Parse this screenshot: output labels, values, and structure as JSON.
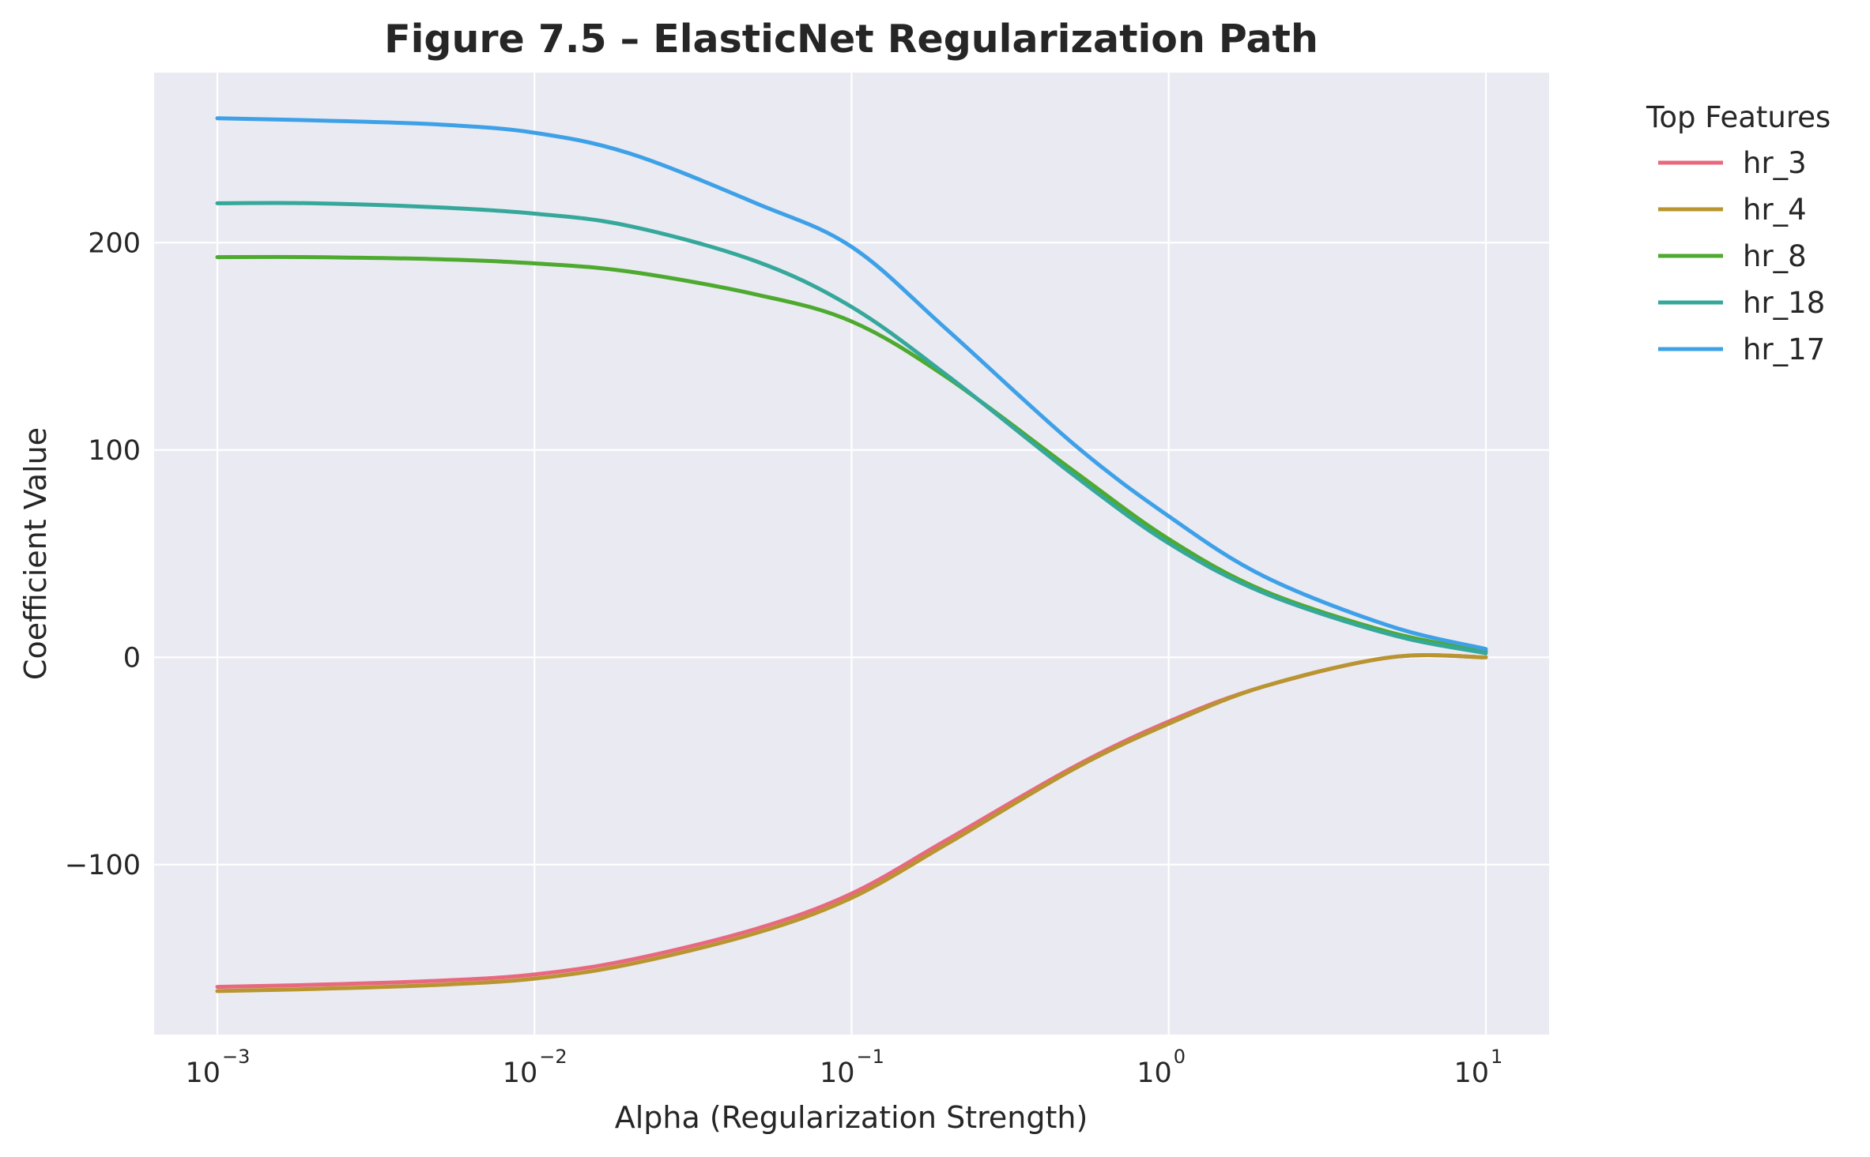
{
  "chart_data": {
    "type": "line",
    "title": "Figure 7.5 – ElasticNet Regularization Path",
    "xlabel": "Alpha (Regularization Strength)",
    "ylabel": "Coefficient Value",
    "xscale": "log",
    "xlim": [
      0.001,
      10
    ],
    "ylim": [
      -182,
      282
    ],
    "grid": true,
    "background": "#EAEAF2",
    "x_ticks": [
      {
        "base": "10",
        "exp": "−3",
        "value": 0.001
      },
      {
        "base": "10",
        "exp": "−2",
        "value": 0.01
      },
      {
        "base": "10",
        "exp": "−1",
        "value": 0.1
      },
      {
        "base": "10",
        "exp": "0",
        "value": 1
      },
      {
        "base": "10",
        "exp": "1",
        "value": 10
      }
    ],
    "y_ticks": [
      {
        "label": "−100",
        "value": -100
      },
      {
        "label": "0",
        "value": 0
      },
      {
        "label": "100",
        "value": 100
      },
      {
        "label": "200",
        "value": 200
      }
    ],
    "legend": {
      "title": "Top Features",
      "placement": "outside-right"
    },
    "x": [
      0.001,
      0.002,
      0.005,
      0.01,
      0.02,
      0.05,
      0.1,
      0.2,
      0.5,
      1,
      2,
      5,
      10
    ],
    "series": [
      {
        "name": "hr_3",
        "color": "#E8697E",
        "values": [
          -159,
          -158,
          -156,
          -153,
          -146,
          -131,
          -114,
          -88,
          -53,
          -31,
          -14,
          0,
          0
        ]
      },
      {
        "name": "hr_4",
        "color": "#B8952F",
        "values": [
          -161,
          -160,
          -158,
          -155,
          -148,
          -133,
          -116,
          -90,
          -54,
          -32,
          -14,
          0,
          0
        ]
      },
      {
        "name": "hr_8",
        "color": "#4DAA2E",
        "values": [
          193,
          193,
          192,
          190,
          186,
          175,
          162,
          135,
          90,
          57,
          32,
          12,
          3
        ]
      },
      {
        "name": "hr_18",
        "color": "#35A89B",
        "values": [
          219,
          219,
          217,
          214,
          208,
          191,
          169,
          136,
          88,
          55,
          31,
          11,
          2
        ]
      },
      {
        "name": "hr_17",
        "color": "#3EA1E8",
        "values": [
          260,
          259,
          257,
          253,
          243,
          219,
          198,
          158,
          103,
          68,
          39,
          15,
          4
        ]
      }
    ]
  }
}
